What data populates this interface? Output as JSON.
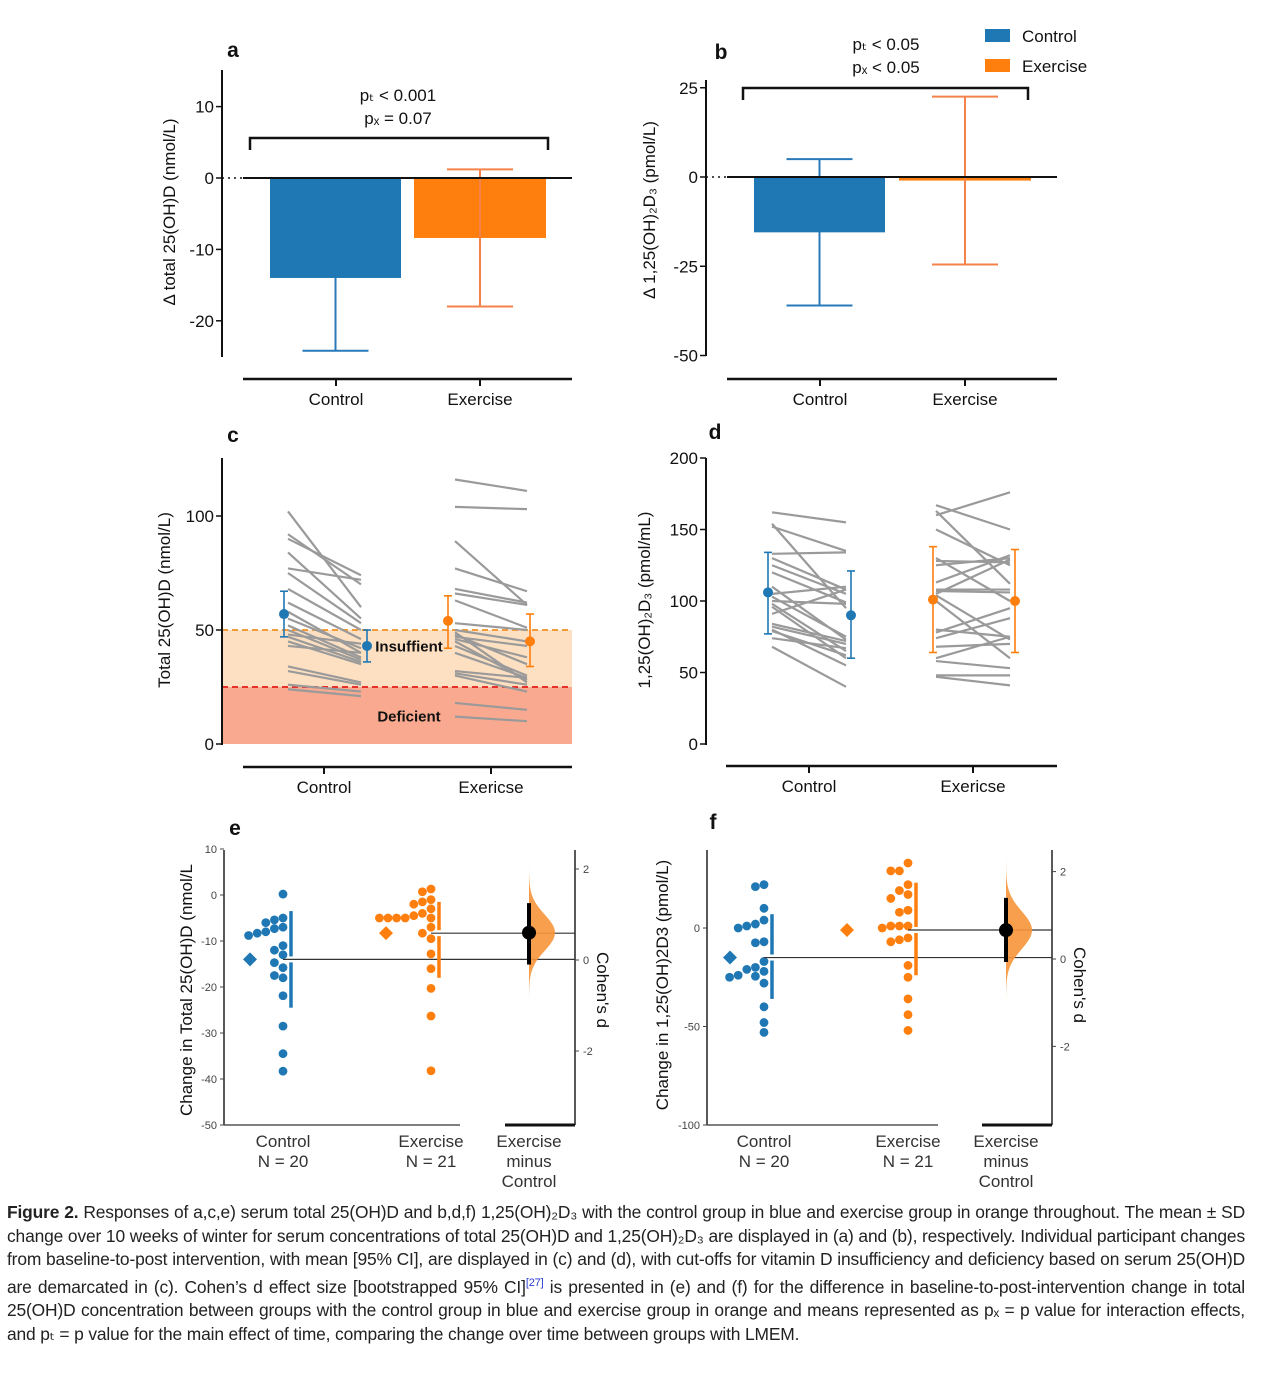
{
  "legend": {
    "items": [
      {
        "label": "Control",
        "color": "#1f77b4"
      },
      {
        "label": "Exercise",
        "color": "#ff7f0e"
      }
    ]
  },
  "chart_data": [
    {
      "panel": "a",
      "type": "bar",
      "ylabel": "Δ total 25(OH)D (nmol/L)",
      "categories": [
        "Control",
        "Exercise"
      ],
      "values": [
        -14.0,
        -8.4
      ],
      "sd": [
        10.2,
        9.6
      ],
      "yticks": [
        "10",
        "0",
        "-10",
        "-20"
      ],
      "ytick_values": [
        10,
        0,
        -10,
        -20
      ],
      "ylim": [
        -25,
        15
      ],
      "annotation": [
        "pₜ < 0.001",
        "pₓ = 0.07"
      ]
    },
    {
      "panel": "b",
      "type": "bar",
      "ylabel": "Δ 1,25(OH)₂D₃ (pmol/L)",
      "categories": [
        "Control",
        "Exercise"
      ],
      "values": [
        -15.5,
        -1.0
      ],
      "sd": [
        20.5,
        23.5
      ],
      "yticks": [
        "25",
        "0",
        "-25",
        "-50"
      ],
      "ytick_values": [
        25,
        0,
        -25,
        -50
      ],
      "ylim": [
        -50,
        28
      ],
      "annotation": [
        "pₜ < 0.05",
        "pₓ < 0.05"
      ]
    },
    {
      "panel": "c",
      "type": "line",
      "ylabel": "Total 25(OH)D (nmol/L)",
      "categories": [
        "Control",
        "Exericse"
      ],
      "yticks": [
        "0",
        "50",
        "100"
      ],
      "ytick_values": [
        0,
        50,
        100
      ],
      "ylim": [
        0,
        125
      ],
      "zones": [
        {
          "label": "Insuffient",
          "from": 25,
          "to": 50,
          "color": "#fde0c2"
        },
        {
          "label": "Deficient",
          "from": 0,
          "to": 25,
          "color": "#f9a98f"
        }
      ],
      "means": {
        "Control": [
          [
            57,
            47,
            67
          ],
          [
            43,
            36,
            50
          ]
        ],
        "Exercise": [
          [
            54,
            42,
            65
          ],
          [
            45,
            34,
            57
          ]
        ]
      },
      "individuals": {
        "Control": [
          [
            102,
            60
          ],
          [
            92,
            70
          ],
          [
            90,
            74
          ],
          [
            84,
            55
          ],
          [
            77,
            72
          ],
          [
            75,
            53
          ],
          [
            68,
            50
          ],
          [
            62,
            46
          ],
          [
            58,
            40
          ],
          [
            55,
            42
          ],
          [
            52,
            38
          ],
          [
            50,
            37
          ],
          [
            48,
            44
          ],
          [
            47,
            36
          ],
          [
            45,
            35
          ],
          [
            43,
            40
          ],
          [
            34,
            27
          ],
          [
            32,
            26
          ],
          [
            26,
            23
          ],
          [
            24,
            21
          ]
        ],
        "Exercise": [
          [
            116,
            111
          ],
          [
            104,
            103
          ],
          [
            89,
            61
          ],
          [
            77,
            67
          ],
          [
            68,
            62
          ],
          [
            66,
            61
          ],
          [
            63,
            51
          ],
          [
            53,
            50
          ],
          [
            50,
            45
          ],
          [
            48,
            35
          ],
          [
            47,
            43
          ],
          [
            46,
            38
          ],
          [
            45,
            28
          ],
          [
            43,
            30
          ],
          [
            32,
            29
          ],
          [
            31,
            26
          ],
          [
            30,
            23
          ],
          [
            18,
            15
          ],
          [
            12,
            10
          ],
          [
            49,
            27
          ],
          [
            40,
            29
          ]
        ]
      }
    },
    {
      "panel": "d",
      "type": "line",
      "ylabel": "1,25(OH)₂D₃ (pmol/mL)",
      "categories": [
        "Control",
        "Exericse"
      ],
      "yticks": [
        "0",
        "50",
        "100",
        "150",
        "200"
      ],
      "ytick_values": [
        0,
        50,
        100,
        150,
        200
      ],
      "ylim": [
        0,
        200
      ],
      "means": {
        "Control": [
          [
            106,
            77,
            134
          ],
          [
            90,
            60,
            121
          ]
        ],
        "Exercise": [
          [
            101,
            64,
            138
          ],
          [
            100,
            64,
            136
          ]
        ]
      },
      "individuals": {
        "Control": [
          [
            162,
            155
          ],
          [
            154,
            95
          ],
          [
            152,
            135
          ],
          [
            133,
            134
          ],
          [
            130,
            108
          ],
          [
            125,
            105
          ],
          [
            120,
            99
          ],
          [
            110,
            73
          ],
          [
            105,
            110
          ],
          [
            103,
            75
          ],
          [
            100,
            98
          ],
          [
            98,
            65
          ],
          [
            96,
            60
          ],
          [
            91,
            108
          ],
          [
            84,
            72
          ],
          [
            82,
            70
          ],
          [
            80,
            55
          ],
          [
            79,
            62
          ],
          [
            74,
            67
          ],
          [
            68,
            40
          ]
        ],
        "Exercise": [
          [
            167,
            150
          ],
          [
            163,
            112
          ],
          [
            160,
            176
          ],
          [
            150,
            125
          ],
          [
            130,
            100
          ],
          [
            128,
            127
          ],
          [
            125,
            130
          ],
          [
            113,
            132
          ],
          [
            108,
            108
          ],
          [
            107,
            106
          ],
          [
            105,
            129
          ],
          [
            104,
            73
          ],
          [
            100,
            60
          ],
          [
            80,
            75
          ],
          [
            78,
            95
          ],
          [
            74,
            88
          ],
          [
            68,
            70
          ],
          [
            60,
            75
          ],
          [
            58,
            53
          ],
          [
            48,
            48
          ],
          [
            47,
            41
          ]
        ]
      }
    },
    {
      "panel": "e",
      "type": "scatter",
      "ylabel": "Change in Total 25(OH)D (nmol/L",
      "y2label": "Cohen's d",
      "yticks": [
        "10",
        "0",
        "-10",
        "-20",
        "-30",
        "-40",
        "-50"
      ],
      "ytick_values": [
        10,
        0,
        -10,
        -20,
        -30,
        -40,
        -50
      ],
      "y2ticks": [
        "2",
        "0",
        "-2"
      ],
      "y2tick_values": [
        2,
        0,
        -2
      ],
      "groups": [
        {
          "label": "Control",
          "n_label": "N = 20",
          "mean": -14.0,
          "sd_range": [
            -24.5,
            -3.5
          ],
          "values": [
            0.2,
            -5,
            -5.4,
            -6,
            -7,
            -7.3,
            -8,
            -8.3,
            -8.8,
            -11,
            -12,
            -13,
            -14.7,
            -15.8,
            -17.5,
            -18,
            -21.9,
            -28.5,
            -34.5,
            -38.3
          ]
        },
        {
          "label": "Exercise",
          "n_label": "N = 21",
          "mean": -8.3,
          "sd_range": [
            -18,
            -1.5
          ],
          "values": [
            1.3,
            0.7,
            -1,
            -1.5,
            -2,
            -3,
            -4,
            -4.5,
            -5,
            -5,
            -5,
            -5,
            -5,
            -7,
            -8.3,
            -9.5,
            -12.8,
            -16,
            -20.3,
            -26.3,
            -38.2
          ]
        }
      ],
      "effect": {
        "label": [
          "Exercise",
          "minus",
          "Control"
        ],
        "d": 0.6,
        "ci": [
          -0.1,
          1.25
        ]
      }
    },
    {
      "panel": "f",
      "type": "scatter",
      "ylabel": "Change in 1,25(OH)2D3 (pmol/L)",
      "y2label": "Cohen's d",
      "yticks": [
        "0",
        "-50",
        "-100"
      ],
      "ytick_values": [
        0,
        -50,
        -100
      ],
      "y2ticks": [
        "2",
        "0",
        "-2"
      ],
      "y2tick_values": [
        2,
        0,
        -2
      ],
      "groups": [
        {
          "label": "Control",
          "n_label": "N = 20",
          "mean": -15,
          "sd_range": [
            -36,
            7
          ],
          "values": [
            22,
            21,
            10,
            4,
            2,
            1,
            0,
            -7,
            -7.5,
            -17,
            -20,
            -21,
            -22,
            -24,
            -25,
            -24.5,
            -28,
            -40,
            -48,
            -53
          ]
        },
        {
          "label": "Exercise",
          "n_label": "N = 21",
          "mean": -1,
          "sd_range": [
            -24,
            23
          ],
          "values": [
            33,
            29,
            29,
            22,
            19,
            17,
            15,
            9,
            8,
            1,
            1,
            1,
            0,
            -5,
            -6,
            -7,
            -19,
            -25,
            -36,
            -44,
            -52
          ]
        }
      ],
      "effect": {
        "label": [
          "Exercise",
          "minus",
          "Control"
        ],
        "d": 0.66,
        "ci": [
          -0.07,
          1.4
        ]
      }
    }
  ],
  "caption": {
    "label": "Figure 2.",
    "text1": " Responses of a,c,e) serum total 25(OH)D and b,d,f) 1,25(OH)₂D₃ with the control group in blue and exercise group in orange throughout. The mean ± SD change over 10 weeks of winter for serum concentrations of total 25(OH)D and 1,25(OH)₂D₃ are displayed in (a) and (b), respectively. Individual participant changes from baseline-to-post intervention, with mean [95% CI], are displayed in (c) and (d), with cut-offs for vitamin D insufficiency and deficiency based on serum 25(OH)D are demarcated in (c). Cohen’s d effect size [bootstrapped 95% CI]",
    "ref": "[27]",
    "text2": " is presented in (e) and (f) for the difference in baseline-to-post-intervention change in total 25(OH)D concentration between groups with the control group in blue and exercise group in orange and means represented as pₓ = p value for interaction effects, and pₜ = p value for the main effect of time, comparing the change over time between groups with LMEM."
  }
}
